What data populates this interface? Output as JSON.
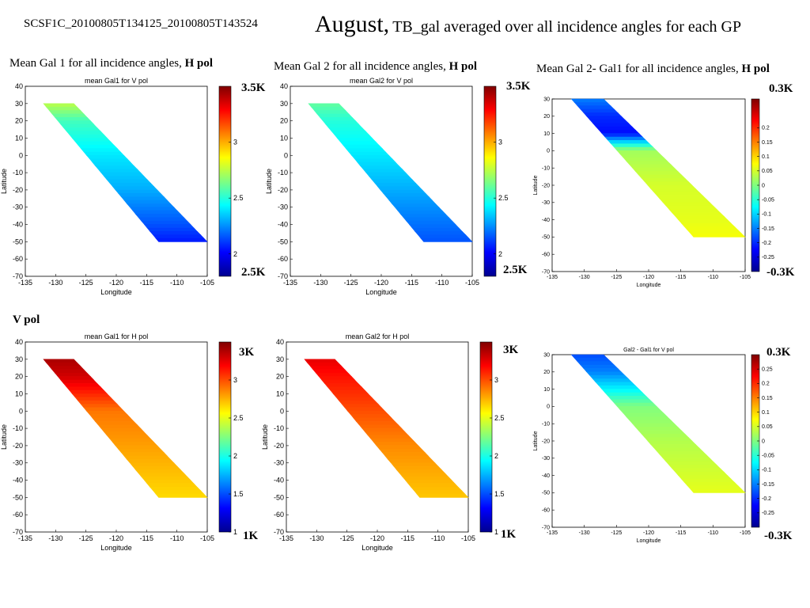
{
  "header": {
    "file_id": "SCSF1C_20100805T134125_20100805T143524",
    "title_main": "August,",
    "title_rest": "TB_gal averaged over all incidence angles for each GP"
  },
  "row_labels": {
    "vpol": "V pol"
  },
  "colors": {
    "jet": [
      "#00008f",
      "#0000ff",
      "#0080ff",
      "#00ffff",
      "#80ff80",
      "#ffff00",
      "#ff8000",
      "#ff0000",
      "#800000"
    ]
  },
  "chart_data": [
    {
      "type": "heatmap",
      "caption": "Mean Gal 1 for all incidence angles, ",
      "caption_pol": "H pol",
      "title": "mean Gal1 for V pol",
      "xlabel": "Longitude",
      "ylabel": "Latitude",
      "xlim": [
        -135,
        -105
      ],
      "ylim": [
        -70,
        40
      ],
      "xticks": [
        -135,
        -130,
        -125,
        -120,
        -115,
        -110,
        -105
      ],
      "yticks": [
        40,
        30,
        20,
        10,
        0,
        -10,
        -20,
        -30,
        -40,
        -50,
        -60,
        -70
      ],
      "swath": {
        "top_lat": 30,
        "bottom_lat": -50,
        "top_lon": [
          -132,
          -127
        ],
        "bottom_lon": [
          -113,
          -105
        ]
      },
      "colorbar": {
        "min": 1.8,
        "max": 3.5,
        "ticks": [
          2,
          2.5,
          3
        ],
        "label_top": "3.5K",
        "label_bottom": "2.5K"
      },
      "values_by_lat": [
        {
          "lat": 30,
          "value": 2.75
        },
        {
          "lat": 20,
          "value": 2.55
        },
        {
          "lat": 0,
          "value": 2.4
        },
        {
          "lat": -20,
          "value": 2.3
        },
        {
          "lat": -40,
          "value": 2.15
        },
        {
          "lat": -50,
          "value": 2.05
        }
      ]
    },
    {
      "type": "heatmap",
      "caption": "Mean Gal 2 for all incidence angles, ",
      "caption_pol": "H pol",
      "title": "mean Gal2 for V pol",
      "xlabel": "Longitude",
      "ylabel": "Latitude",
      "xlim": [
        -135,
        -105
      ],
      "ylim": [
        -70,
        40
      ],
      "xticks": [
        -135,
        -130,
        -125,
        -120,
        -115,
        -110,
        -105
      ],
      "yticks": [
        40,
        30,
        20,
        10,
        0,
        -10,
        -20,
        -30,
        -40,
        -50,
        -60,
        -70
      ],
      "swath": {
        "top_lat": 30,
        "bottom_lat": -50,
        "top_lon": [
          -132,
          -127
        ],
        "bottom_lon": [
          -113,
          -105
        ]
      },
      "colorbar": {
        "min": 1.8,
        "max": 3.5,
        "ticks": [
          2,
          2.5,
          3
        ],
        "label_top": "3.5K",
        "label_bottom": "2.5K"
      },
      "values_by_lat": [
        {
          "lat": 30,
          "value": 2.6
        },
        {
          "lat": 20,
          "value": 2.5
        },
        {
          "lat": 0,
          "value": 2.4
        },
        {
          "lat": -20,
          "value": 2.3
        },
        {
          "lat": -40,
          "value": 2.2
        },
        {
          "lat": -50,
          "value": 2.15
        }
      ]
    },
    {
      "type": "heatmap",
      "caption": "Mean Gal 2- Gal1 for all incidence angles, ",
      "caption_pol": "H pol",
      "title": "",
      "xlabel": "Longitude",
      "ylabel": "Latitude",
      "xlim": [
        -135,
        -105
      ],
      "ylim": [
        -70,
        30
      ],
      "xticks": [
        -135,
        -130,
        -125,
        -120,
        -115,
        -110,
        -105
      ],
      "yticks": [
        30,
        20,
        10,
        0,
        -10,
        -20,
        -30,
        -40,
        -50,
        -60,
        -70
      ],
      "swath": {
        "top_lat": 30,
        "bottom_lat": -50,
        "top_lon": [
          -132,
          -127
        ],
        "bottom_lon": [
          -113,
          -105
        ]
      },
      "colorbar": {
        "min": -0.3,
        "max": 0.3,
        "ticks": [
          0.2,
          0.15,
          0.1,
          0.05,
          0,
          -0.05,
          -0.1,
          -0.15,
          -0.2,
          -0.25
        ],
        "label_top": "0.3K",
        "label_bottom": "-0.3K"
      },
      "values_by_lat": [
        {
          "lat": 30,
          "value": -0.15
        },
        {
          "lat": 20,
          "value": -0.2
        },
        {
          "lat": 10,
          "value": -0.22
        },
        {
          "lat": 0,
          "value": 0.02
        },
        {
          "lat": -20,
          "value": 0.05
        },
        {
          "lat": -40,
          "value": 0.06
        },
        {
          "lat": -50,
          "value": 0.07
        }
      ]
    },
    {
      "type": "heatmap",
      "caption": "",
      "caption_pol": "",
      "title": "mean Gal1 for H pol",
      "xlabel": "Longitude",
      "ylabel": "Latitude",
      "xlim": [
        -135,
        -105
      ],
      "ylim": [
        -70,
        40
      ],
      "xticks": [
        -135,
        -130,
        -125,
        -120,
        -115,
        -110,
        -105
      ],
      "yticks": [
        40,
        30,
        20,
        10,
        0,
        -10,
        -20,
        -30,
        -40,
        -50,
        -60,
        -70
      ],
      "swath": {
        "top_lat": 30,
        "bottom_lat": -50,
        "top_lon": [
          -132,
          -127
        ],
        "bottom_lon": [
          -113,
          -105
        ]
      },
      "colorbar": {
        "min": 1.0,
        "max": 3.5,
        "ticks": [
          1,
          1.5,
          2,
          2.5,
          3
        ],
        "label_top": "3K",
        "label_bottom": "1K"
      },
      "values_by_lat": [
        {
          "lat": 30,
          "value": 3.4
        },
        {
          "lat": 20,
          "value": 3.3
        },
        {
          "lat": 10,
          "value": 3.1
        },
        {
          "lat": 0,
          "value": 2.9
        },
        {
          "lat": -20,
          "value": 2.8
        },
        {
          "lat": -40,
          "value": 2.7
        },
        {
          "lat": -50,
          "value": 2.65
        }
      ]
    },
    {
      "type": "heatmap",
      "caption": "",
      "caption_pol": "",
      "title": "mean Gal2 for H pol",
      "xlabel": "Longitude",
      "ylabel": "Latitude",
      "xlim": [
        -135,
        -105
      ],
      "ylim": [
        -70,
        40
      ],
      "xticks": [
        -135,
        -130,
        -125,
        -120,
        -115,
        -110,
        -105
      ],
      "yticks": [
        40,
        30,
        20,
        10,
        0,
        -10,
        -20,
        -30,
        -40,
        -50,
        -60,
        -70
      ],
      "swath": {
        "top_lat": 30,
        "bottom_lat": -50,
        "top_lon": [
          -132,
          -127
        ],
        "bottom_lon": [
          -113,
          -105
        ]
      },
      "colorbar": {
        "min": 1.0,
        "max": 3.5,
        "ticks": [
          1,
          1.5,
          2,
          2.5,
          3
        ],
        "label_top": "3K",
        "label_bottom": "1K"
      },
      "values_by_lat": [
        {
          "lat": 30,
          "value": 3.25
        },
        {
          "lat": 20,
          "value": 3.15
        },
        {
          "lat": 0,
          "value": 3.0
        },
        {
          "lat": -20,
          "value": 2.85
        },
        {
          "lat": -40,
          "value": 2.75
        },
        {
          "lat": -50,
          "value": 2.7
        }
      ]
    },
    {
      "type": "heatmap",
      "caption": "",
      "caption_pol": "",
      "title": "Gal2 - Gal1 for V pol",
      "xlabel": "Longitude",
      "ylabel": "Latitude",
      "xlim": [
        -135,
        -105
      ],
      "ylim": [
        -70,
        30
      ],
      "xticks": [
        -135,
        -130,
        -125,
        -120,
        -115,
        -110,
        -105
      ],
      "yticks": [
        30,
        20,
        10,
        0,
        -10,
        -20,
        -30,
        -40,
        -50,
        -60,
        -70
      ],
      "swath": {
        "top_lat": 30,
        "bottom_lat": -50,
        "top_lon": [
          -132,
          -127
        ],
        "bottom_lon": [
          -113,
          -105
        ]
      },
      "colorbar": {
        "min": -0.3,
        "max": 0.3,
        "ticks": [
          0.25,
          0.2,
          0.15,
          0.1,
          0.05,
          0,
          -0.05,
          -0.1,
          -0.15,
          -0.2,
          -0.25
        ],
        "label_top": "0.3K",
        "label_bottom": "-0.3K"
      },
      "values_by_lat": [
        {
          "lat": 30,
          "value": -0.18
        },
        {
          "lat": 20,
          "value": -0.15
        },
        {
          "lat": 10,
          "value": -0.08
        },
        {
          "lat": 0,
          "value": 0.0
        },
        {
          "lat": -20,
          "value": 0.03
        },
        {
          "lat": -40,
          "value": 0.05
        },
        {
          "lat": -50,
          "value": 0.06
        }
      ]
    }
  ]
}
